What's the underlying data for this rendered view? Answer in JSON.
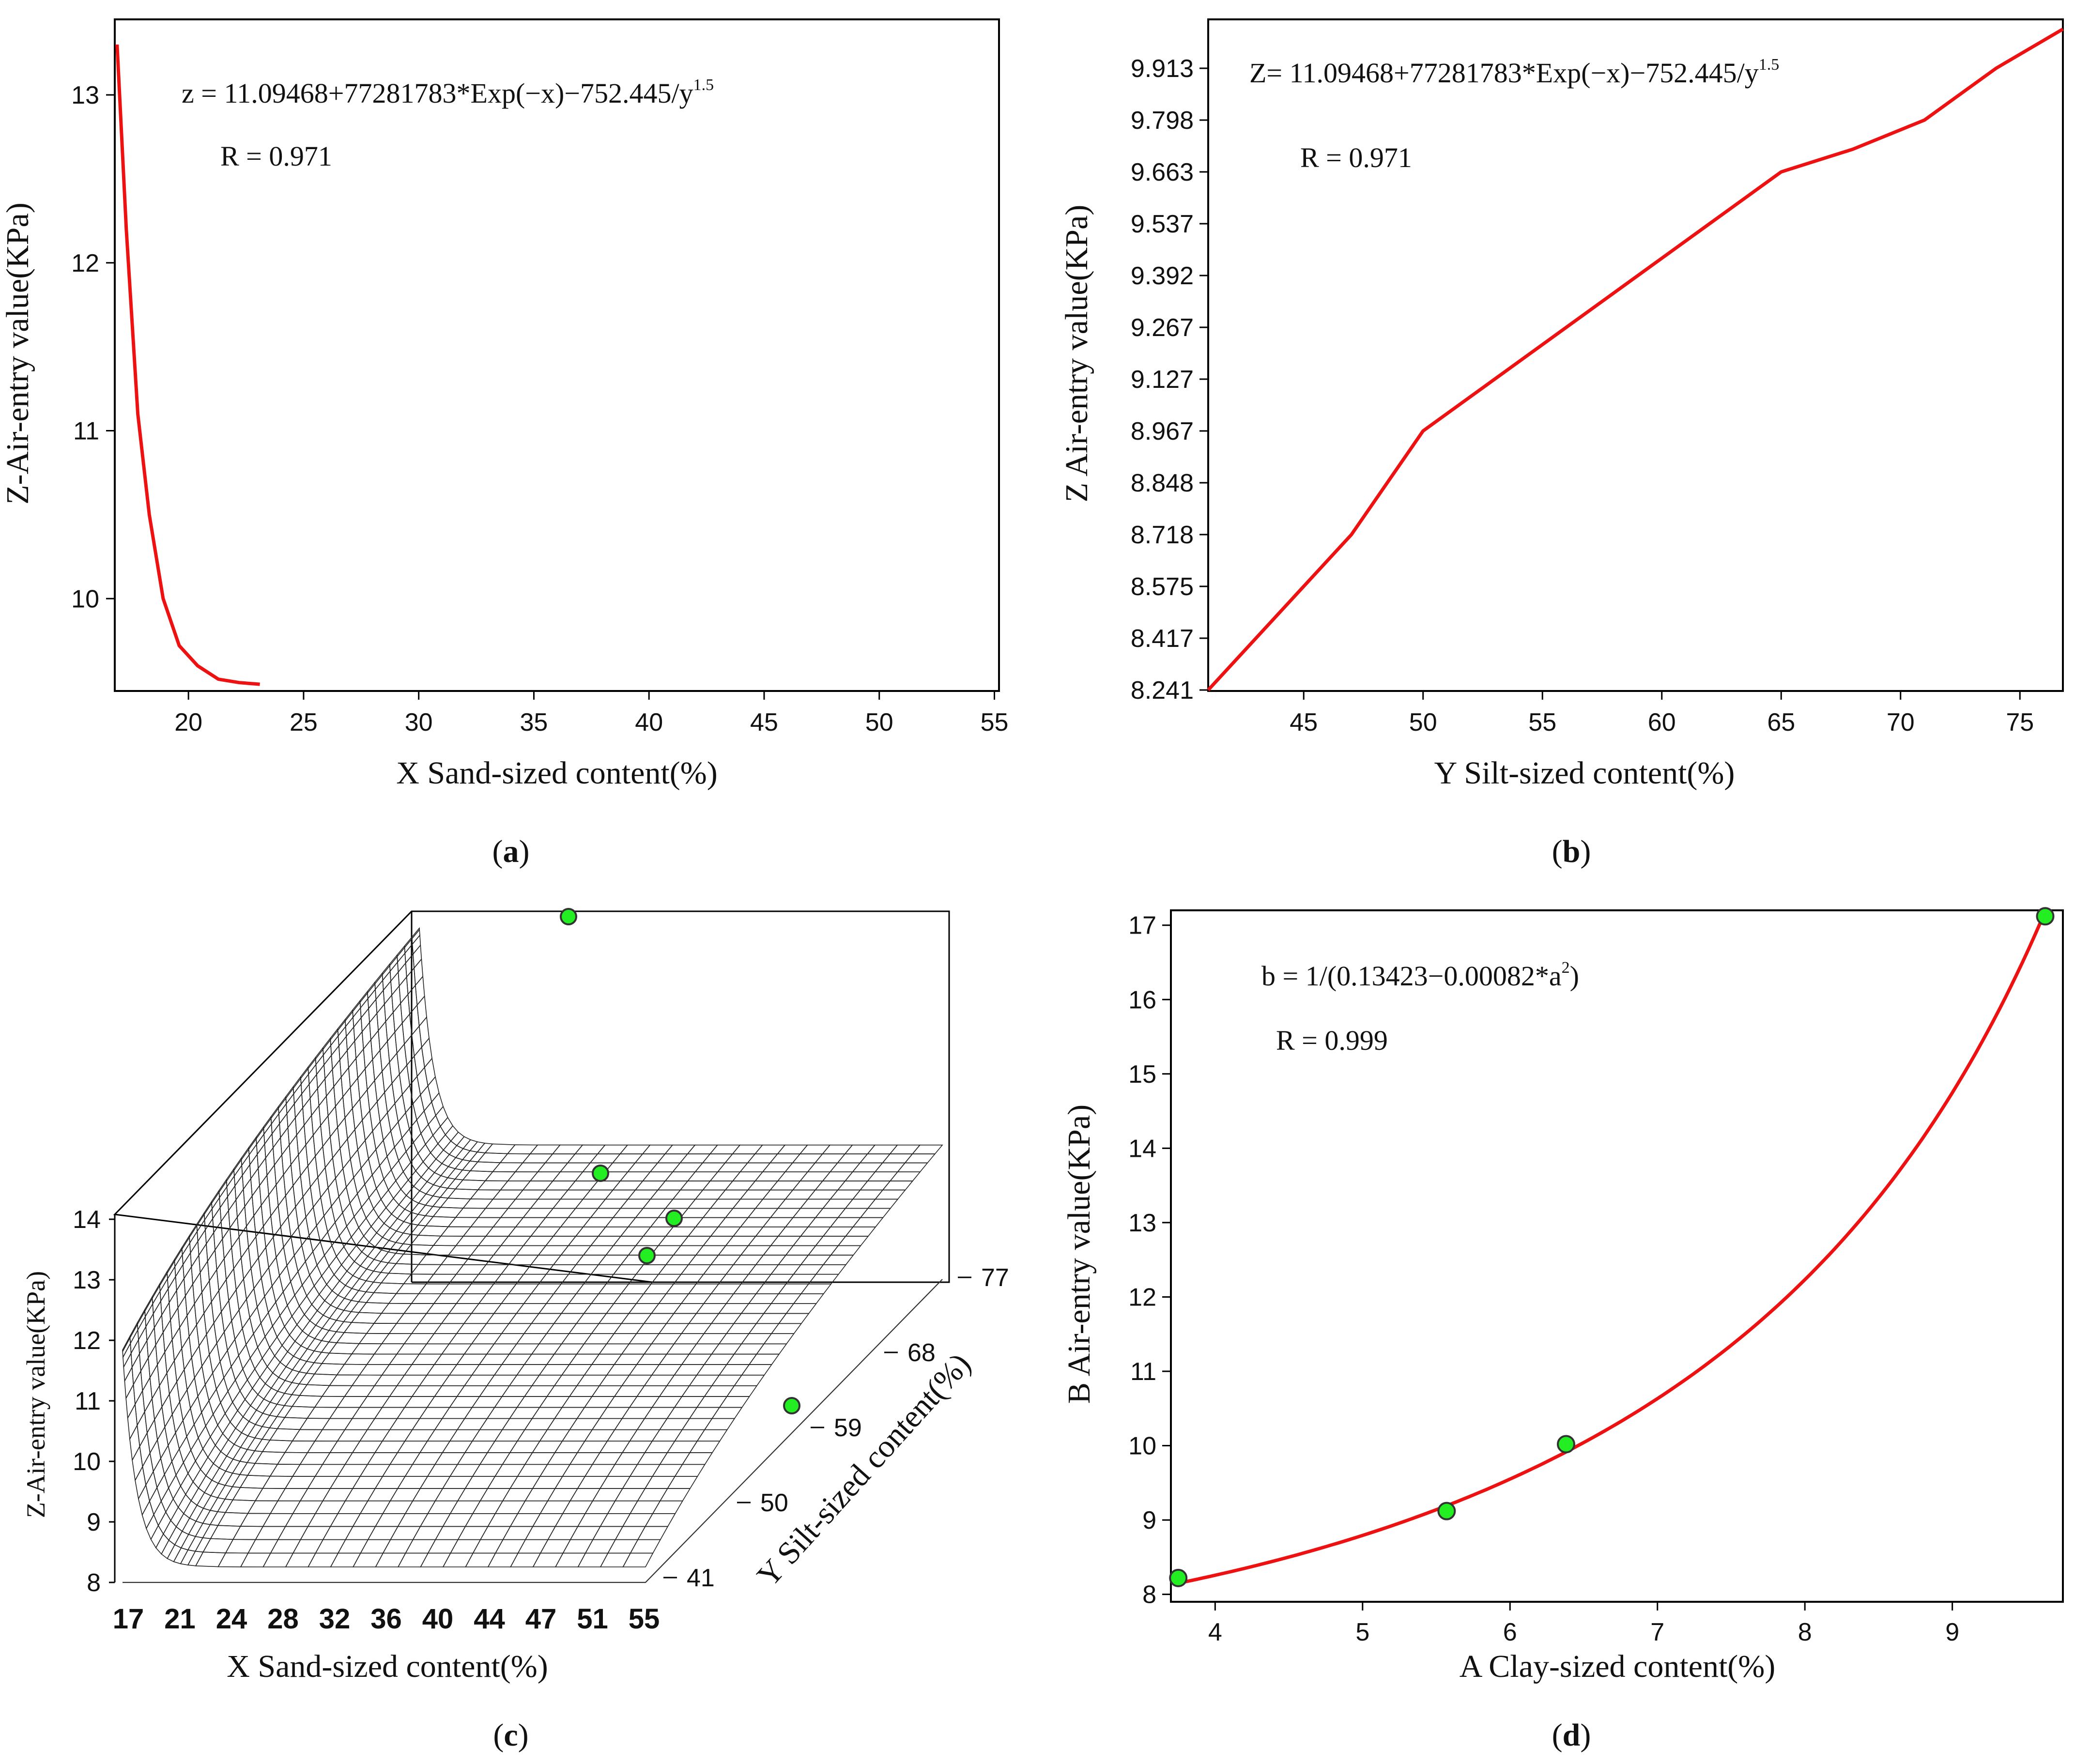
{
  "figure": {
    "panels": [
      "a",
      "b",
      "c",
      "d"
    ]
  },
  "chart_data": [
    {
      "id": "a",
      "type": "line",
      "caption": "a",
      "xlabel": "X Sand-sized content(%)",
      "ylabel": "Z-Air-entry value(KPa)",
      "equation": "z = 11.09468+77281783*Exp(−x)−752.445/y",
      "equation_sup": "1.5",
      "r_text": "R = 0.971",
      "xlim": [
        16.8,
        55.2
      ],
      "ylim": [
        9.45,
        13.45
      ],
      "xticks": [
        20,
        25,
        30,
        35,
        40,
        45,
        50,
        55
      ],
      "yticks": [
        10,
        11,
        12,
        13
      ],
      "curve_color": "#ee1111",
      "series": [
        {
          "name": "fit",
          "x": [
            16.9,
            17.3,
            17.8,
            18.3,
            18.9,
            19.6,
            20.4,
            21.3,
            22.2,
            23.1
          ],
          "y": [
            13.3,
            12.2,
            11.1,
            10.5,
            10.0,
            9.72,
            9.6,
            9.52,
            9.5,
            9.49
          ]
        }
      ]
    },
    {
      "id": "b",
      "type": "line",
      "caption": "b",
      "xlabel": "Y Silt-sized content(%)",
      "ylabel": "Z Air-entry value(KPa)",
      "equation": "Z= 11.09468+77281783*Exp(−x)−752.445/y",
      "equation_sup": "1.5",
      "r_text": "R = 0.971",
      "xlim": [
        41,
        76.8
      ],
      "xticks": [
        45,
        50,
        55,
        60,
        65,
        70,
        75
      ],
      "yticks": [
        "8.241",
        "8.417",
        "8.575",
        "8.718",
        "8.848",
        "8.967",
        "9.127",
        "9.267",
        "9.392",
        "9.537",
        "9.663",
        "9.798",
        "9.913"
      ],
      "curve_color": "#ee1111",
      "series": [
        {
          "name": "fit",
          "x": [
            41,
            43,
            45,
            47,
            50,
            53,
            56,
            59,
            62,
            65,
            68,
            71,
            74,
            76.8
          ],
          "y": [
            8.241,
            8.417,
            8.575,
            8.718,
            8.967,
            9.127,
            9.267,
            9.392,
            9.537,
            9.663,
            9.722,
            9.798,
            9.913,
            10.0
          ]
        }
      ]
    },
    {
      "id": "c",
      "type": "surface3d",
      "caption": "c",
      "xlabel": "X Sand-sized content(%)",
      "ylabel": "Y Silt-sized content(%)",
      "zlabel": "Z-Air-entry value(KPa)",
      "xticks": [
        "17",
        "21",
        "24",
        "28",
        "32",
        "36",
        "40",
        "44",
        "47",
        "51",
        "55"
      ],
      "yticks": [
        "41",
        "50",
        "59",
        "68",
        "77"
      ],
      "zticks": [
        "8",
        "9",
        "10",
        "11",
        "12",
        "13",
        "14"
      ],
      "colors": {
        "low": "#9aa0ee",
        "mid": "#f0f080",
        "high": "#e85018"
      },
      "point_color": "#22ee22"
    },
    {
      "id": "d",
      "type": "line",
      "caption": "d",
      "xlabel": "A Clay-sized content(%)",
      "ylabel": "B Air-entry value(KPa)",
      "equation": "b = 1/(0.13423−0.00082*a",
      "equation_sup": "2",
      "equation_end": ")",
      "r_text": "R = 0.999",
      "xlim": [
        3.7,
        9.75
      ],
      "ylim": [
        7.9,
        17.2
      ],
      "xticks": [
        4,
        5,
        6,
        7,
        8,
        9
      ],
      "yticks": [
        8,
        9,
        10,
        11,
        12,
        13,
        14,
        15,
        16,
        17
      ],
      "curve_color": "#ee1111",
      "points": {
        "x": [
          3.75,
          5.57,
          6.38,
          9.63
        ],
        "y": [
          8.22,
          9.12,
          10.02,
          17.12
        ]
      }
    }
  ]
}
